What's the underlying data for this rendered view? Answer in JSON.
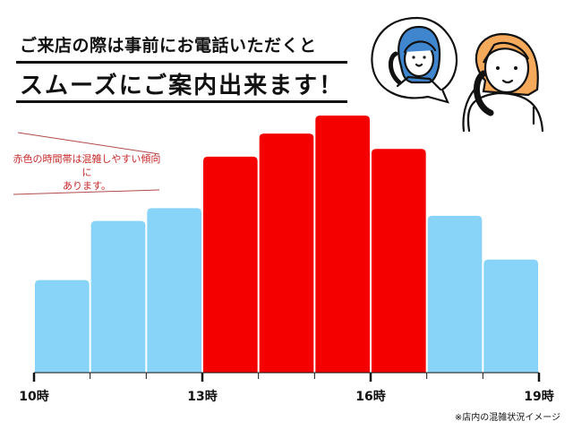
{
  "header": {
    "line1": "ご来店の際は事前にお電話いただくと",
    "line2": "スムーズにご案内出来ます！"
  },
  "annotation": {
    "line1": "赤色の時間帯は混雑しやすい傾向に",
    "line2": "あります。"
  },
  "footnote": "※店内の混雑状況イメージ",
  "illustration": {
    "icon": "woman-on-phone-with-staff-speech-bubble-icon",
    "hair_colors": {
      "staff": "#3f86cf",
      "customer": "#f5a95a"
    }
  },
  "colors": {
    "busy": "#f50000",
    "normal": "#87d4f8",
    "axis": "#111111"
  },
  "chart_data": {
    "type": "bar",
    "title": "",
    "xlabel": "",
    "ylabel": "",
    "x_range": [
      10,
      19
    ],
    "tick_labels": [
      {
        "hour": 10,
        "label": "10時"
      },
      {
        "hour": 13,
        "label": "13時"
      },
      {
        "hour": 16,
        "label": "16時"
      },
      {
        "hour": 19,
        "label": "19時"
      }
    ],
    "bins": [
      {
        "start": 10,
        "end": 11,
        "level": 36,
        "busy": false
      },
      {
        "start": 11,
        "end": 12,
        "level": 59,
        "busy": false
      },
      {
        "start": 12,
        "end": 13,
        "level": 64,
        "busy": false
      },
      {
        "start": 13,
        "end": 14,
        "level": 84,
        "busy": true
      },
      {
        "start": 14,
        "end": 15,
        "level": 93,
        "busy": true
      },
      {
        "start": 15,
        "end": 16,
        "level": 100,
        "busy": true
      },
      {
        "start": 16,
        "end": 17,
        "level": 87,
        "busy": true
      },
      {
        "start": 17,
        "end": 18,
        "level": 61,
        "busy": false
      },
      {
        "start": 18,
        "end": 19,
        "level": 44,
        "busy": false
      }
    ],
    "y_axis_shown": false,
    "grid": false,
    "legend": "none"
  }
}
